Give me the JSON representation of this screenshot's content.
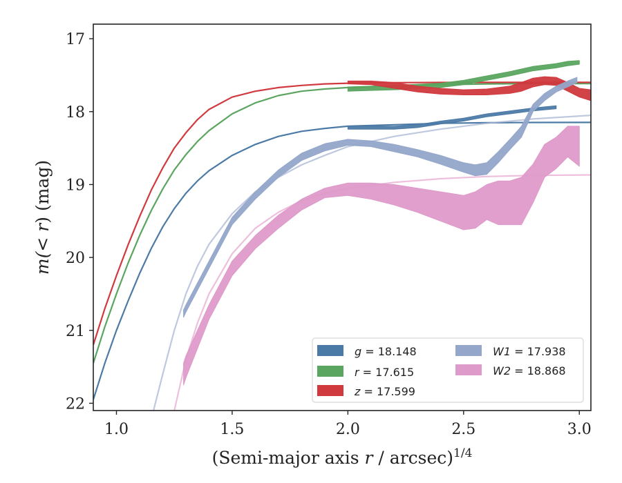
{
  "chart_data": {
    "type": "line",
    "xlabel": "(Semi-major axis r / arcsec)",
    "xlabel_pre": "(Semi-major axis ",
    "xlabel_var": "r",
    "xlabel_post": " / arcsec)",
    "xlabel_sup": "1/4",
    "ylabel_pre": "m(",
    "ylabel_op": "< ",
    "ylabel_var": "r",
    "ylabel_post": ") (mag)",
    "xlim": [
      0.9,
      3.05
    ],
    "ylim": [
      22.1,
      16.8
    ],
    "y_inverted": true,
    "xticks": [
      1.0,
      1.5,
      2.0,
      2.5,
      3.0
    ],
    "xtick_labels": [
      "1.0",
      "1.5",
      "2.0",
      "2.5",
      "3.0"
    ],
    "yticks": [
      17,
      18,
      19,
      20,
      21,
      22
    ],
    "ytick_labels": [
      "17",
      "18",
      "19",
      "20",
      "21",
      "22"
    ],
    "grid": false,
    "legend_position": "lower right",
    "series": [
      {
        "key": "g",
        "band": "g",
        "mag": "18.148",
        "color": "#4c7aa6",
        "fillopacity": 0.95,
        "modelcolor": "#4c7aa6",
        "modelwidth": 2.2,
        "modelopacity": 1.0,
        "model": {
          "x": [
            0.9,
            0.95,
            1.0,
            1.05,
            1.1,
            1.15,
            1.2,
            1.25,
            1.3,
            1.35,
            1.4,
            1.5,
            1.6,
            1.7,
            1.8,
            1.9,
            2.0,
            2.2,
            2.4,
            2.6,
            2.8,
            3.05
          ],
          "y": [
            21.95,
            21.45,
            21.0,
            20.6,
            20.22,
            19.88,
            19.58,
            19.33,
            19.12,
            18.95,
            18.81,
            18.6,
            18.45,
            18.34,
            18.27,
            18.23,
            18.2,
            18.18,
            18.16,
            18.152,
            18.149,
            18.148
          ]
        },
        "profile": {
          "x": [
            2.0,
            2.1,
            2.2,
            2.3,
            2.4,
            2.5,
            2.6,
            2.7,
            2.8,
            2.9
          ],
          "ylo": [
            18.2,
            18.2,
            18.2,
            18.18,
            18.13,
            18.09,
            18.03,
            17.99,
            17.95,
            17.92
          ],
          "yhi": [
            18.24,
            18.24,
            18.24,
            18.22,
            18.17,
            18.13,
            18.07,
            18.03,
            17.99,
            17.96
          ]
        }
      },
      {
        "key": "r",
        "band": "r",
        "mag": "17.615",
        "color": "#5aa55f",
        "fillopacity": 0.95,
        "modelcolor": "#5aa55f",
        "modelwidth": 2.2,
        "modelopacity": 1.0,
        "model": {
          "x": [
            0.9,
            0.95,
            1.0,
            1.05,
            1.1,
            1.15,
            1.2,
            1.25,
            1.3,
            1.35,
            1.4,
            1.5,
            1.6,
            1.7,
            1.8,
            1.9,
            2.0,
            2.2,
            2.4,
            2.6,
            2.8,
            3.05
          ],
          "y": [
            21.45,
            20.95,
            20.5,
            20.08,
            19.7,
            19.36,
            19.06,
            18.8,
            18.59,
            18.41,
            18.26,
            18.03,
            17.88,
            17.78,
            17.72,
            17.69,
            17.67,
            17.645,
            17.63,
            17.62,
            17.617,
            17.615
          ]
        },
        "profile": {
          "x": [
            2.0,
            2.2,
            2.4,
            2.5,
            2.6,
            2.7,
            2.8,
            2.9,
            2.95,
            3.0
          ],
          "ylo": [
            17.66,
            17.64,
            17.61,
            17.57,
            17.51,
            17.45,
            17.38,
            17.34,
            17.31,
            17.3
          ],
          "yhi": [
            17.72,
            17.7,
            17.67,
            17.63,
            17.57,
            17.51,
            17.44,
            17.4,
            17.37,
            17.35
          ]
        }
      },
      {
        "key": "z",
        "band": "z",
        "mag": "17.599",
        "color": "#d0393e",
        "fillopacity": 0.95,
        "modelcolor": "#d0393e",
        "modelwidth": 2.2,
        "modelopacity": 1.0,
        "model": {
          "x": [
            0.9,
            0.95,
            1.0,
            1.05,
            1.1,
            1.15,
            1.2,
            1.25,
            1.3,
            1.35,
            1.4,
            1.5,
            1.6,
            1.7,
            1.8,
            1.9,
            2.0,
            2.2,
            2.4,
            2.6,
            2.8,
            3.05
          ],
          "y": [
            21.2,
            20.7,
            20.25,
            19.83,
            19.44,
            19.08,
            18.77,
            18.5,
            18.29,
            18.11,
            17.97,
            17.8,
            17.72,
            17.67,
            17.64,
            17.62,
            17.61,
            17.603,
            17.6,
            17.599,
            17.599,
            17.599
          ]
        },
        "profile": {
          "x": [
            2.0,
            2.1,
            2.2,
            2.3,
            2.4,
            2.5,
            2.6,
            2.7,
            2.75,
            2.8,
            2.85,
            2.9,
            2.95,
            3.0,
            3.05
          ],
          "ylo": [
            17.58,
            17.58,
            17.6,
            17.65,
            17.68,
            17.7,
            17.69,
            17.65,
            17.6,
            17.54,
            17.52,
            17.53,
            17.6,
            17.68,
            17.7
          ],
          "yhi": [
            17.62,
            17.63,
            17.68,
            17.73,
            17.76,
            17.77,
            17.77,
            17.75,
            17.72,
            17.66,
            17.63,
            17.64,
            17.72,
            17.8,
            17.85
          ]
        }
      },
      {
        "key": "W1",
        "band": "W1",
        "mag": "17.938",
        "color": "#94a6ca",
        "fillopacity": 0.95,
        "modelcolor": "#a8b5d3",
        "modelwidth": 2.2,
        "modelopacity": 0.75,
        "model": {
          "x": [
            1.16,
            1.2,
            1.25,
            1.3,
            1.35,
            1.4,
            1.5,
            1.6,
            1.7,
            1.8,
            1.9,
            2.0,
            2.2,
            2.4,
            2.6,
            2.8,
            3.05
          ],
          "y": [
            22.1,
            21.6,
            21.0,
            20.5,
            20.12,
            19.82,
            19.4,
            19.1,
            18.9,
            18.73,
            18.6,
            18.48,
            18.34,
            18.24,
            18.16,
            18.1,
            18.05
          ]
        },
        "profile": {
          "x": [
            1.29,
            1.3,
            1.4,
            1.5,
            1.6,
            1.7,
            1.8,
            1.9,
            2.0,
            2.1,
            2.2,
            2.3,
            2.4,
            2.5,
            2.55,
            2.6,
            2.65,
            2.7,
            2.75,
            2.8,
            2.85,
            2.9,
            2.95,
            2.99
          ],
          "ylo": [
            20.72,
            20.65,
            20.05,
            19.45,
            19.1,
            18.8,
            18.57,
            18.44,
            18.38,
            18.4,
            18.45,
            18.52,
            18.6,
            18.7,
            18.73,
            18.7,
            18.55,
            18.38,
            18.2,
            17.9,
            17.75,
            17.65,
            17.58,
            17.53
          ],
          "yhi": [
            20.82,
            20.75,
            20.15,
            19.55,
            19.2,
            18.9,
            18.67,
            18.54,
            18.46,
            18.48,
            18.55,
            18.62,
            18.72,
            18.83,
            18.88,
            18.86,
            18.7,
            18.52,
            18.35,
            18.0,
            17.85,
            17.73,
            17.66,
            17.6
          ]
        }
      },
      {
        "key": "W2",
        "band": "W2",
        "mag": "18.868",
        "color": "#de9ac9",
        "fillopacity": 0.95,
        "modelcolor": "#e7a9d2",
        "modelwidth": 2.2,
        "modelopacity": 0.75,
        "model": {
          "x": [
            1.25,
            1.3,
            1.35,
            1.4,
            1.5,
            1.6,
            1.7,
            1.8,
            1.9,
            2.0,
            2.2,
            2.4,
            2.6,
            2.8,
            3.05
          ],
          "y": [
            22.1,
            21.4,
            20.9,
            20.5,
            19.95,
            19.6,
            19.38,
            19.22,
            19.12,
            19.05,
            18.97,
            18.92,
            18.89,
            18.875,
            18.868
          ]
        },
        "profile": {
          "x": [
            1.29,
            1.3,
            1.4,
            1.5,
            1.6,
            1.7,
            1.8,
            1.9,
            2.0,
            2.1,
            2.2,
            2.3,
            2.4,
            2.5,
            2.55,
            2.6,
            2.65,
            2.7,
            2.75,
            2.8,
            2.85,
            2.9,
            2.95,
            3.0
          ],
          "ylo": [
            21.45,
            21.35,
            20.65,
            20.05,
            19.7,
            19.42,
            19.2,
            19.05,
            18.98,
            18.98,
            19.0,
            19.05,
            19.1,
            19.15,
            19.1,
            19.0,
            18.95,
            18.95,
            18.9,
            18.72,
            18.45,
            18.35,
            18.2,
            18.2
          ],
          "yhi": [
            21.75,
            21.65,
            20.85,
            20.25,
            19.88,
            19.6,
            19.35,
            19.18,
            19.15,
            19.2,
            19.28,
            19.38,
            19.5,
            19.62,
            19.6,
            19.48,
            19.55,
            19.55,
            19.55,
            19.25,
            18.9,
            18.78,
            18.62,
            18.75
          ]
        }
      }
    ]
  },
  "legend": {
    "items": [
      {
        "var": "g",
        "eq": " = 18.148",
        "color": "#4c7aa6"
      },
      {
        "var": "r",
        "eq": " = 17.615",
        "color": "#5aa55f"
      },
      {
        "var": "z",
        "eq": " = 17.599",
        "color": "#d0393e"
      },
      {
        "var": "W1",
        "eq": " = 17.938",
        "color": "#94a6ca"
      },
      {
        "var": "W2",
        "eq": " = 18.868",
        "color": "#de9ac9"
      }
    ]
  }
}
